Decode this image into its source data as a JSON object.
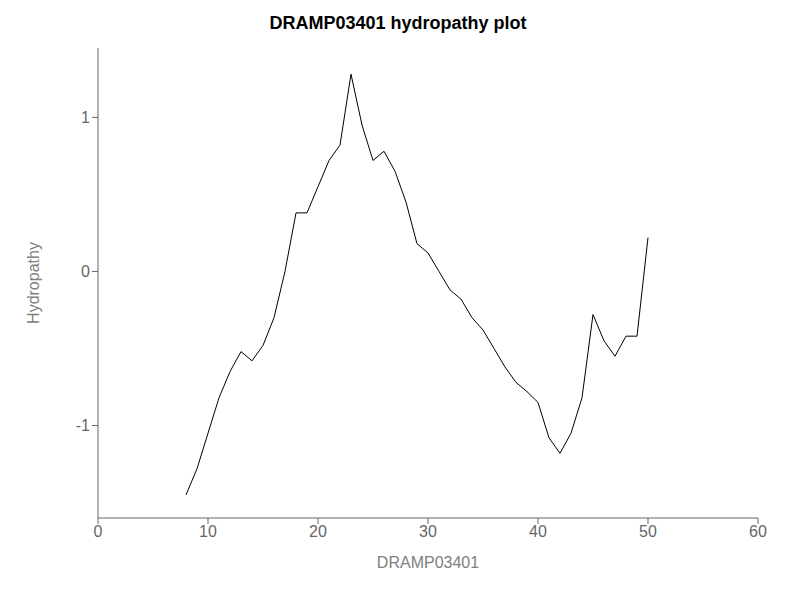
{
  "chart_data": {
    "type": "line",
    "title": "DRAMP03401 hydropathy plot",
    "xlabel": "DRAMP03401",
    "ylabel": "Hydropathy",
    "x": [
      8,
      9,
      10,
      11,
      12,
      13,
      14,
      15,
      16,
      17,
      18,
      19,
      20,
      21,
      22,
      23,
      24,
      25,
      26,
      27,
      28,
      29,
      30,
      31,
      32,
      33,
      34,
      35,
      36,
      37,
      38,
      39,
      40,
      41,
      42,
      43,
      44,
      45,
      46,
      47,
      48,
      49,
      50
    ],
    "values": [
      -1.45,
      -1.28,
      -1.05,
      -0.82,
      -0.65,
      -0.52,
      -0.58,
      -0.48,
      -0.3,
      0.0,
      0.38,
      0.38,
      0.55,
      0.72,
      0.82,
      1.28,
      0.95,
      0.72,
      0.78,
      0.65,
      0.45,
      0.18,
      0.12,
      0.0,
      -0.12,
      -0.18,
      -0.3,
      -0.38,
      -0.5,
      -0.62,
      -0.72,
      -0.78,
      -0.85,
      -1.08,
      -1.18,
      -1.05,
      -0.82,
      -0.28,
      -0.45,
      -0.55,
      -0.42,
      -0.42,
      0.22
    ],
    "color": "#000000",
    "xlim": [
      0,
      60
    ],
    "ylim": [
      -1.6,
      1.45
    ],
    "xticks": [
      0,
      10,
      20,
      30,
      40,
      50,
      60
    ],
    "yticks": [
      -1,
      0,
      1
    ],
    "grid": false
  }
}
